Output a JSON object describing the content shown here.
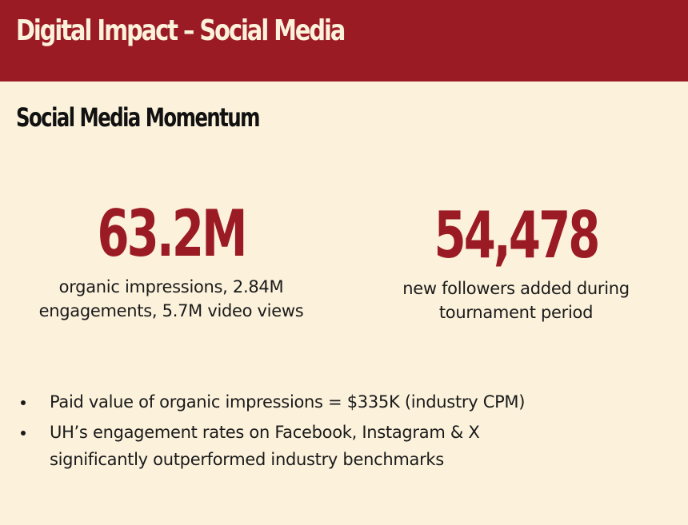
{
  "header": {
    "title": "Digital Impact – Social Media"
  },
  "section": {
    "title": "Social Media Momentum"
  },
  "stats": [
    {
      "value": "63.2M",
      "caption_line1": "organic impressions, 2.84M",
      "caption_line2": "engagements, 5.7M video views"
    },
    {
      "value": "54,478",
      "caption_line1": "new followers added during",
      "caption_line2": "tournament period"
    }
  ],
  "bullets": [
    {
      "line1": "Paid value of organic impressions = $335K (industry CPM)",
      "line2": ""
    },
    {
      "line1": "UH’s engagement rates on Facebook, Instagram & X",
      "line2": "significantly outperformed industry benchmarks"
    }
  ],
  "colors": {
    "brand": "#9b1b24",
    "background": "#fcf2dc",
    "text": "#1a1a1a"
  }
}
